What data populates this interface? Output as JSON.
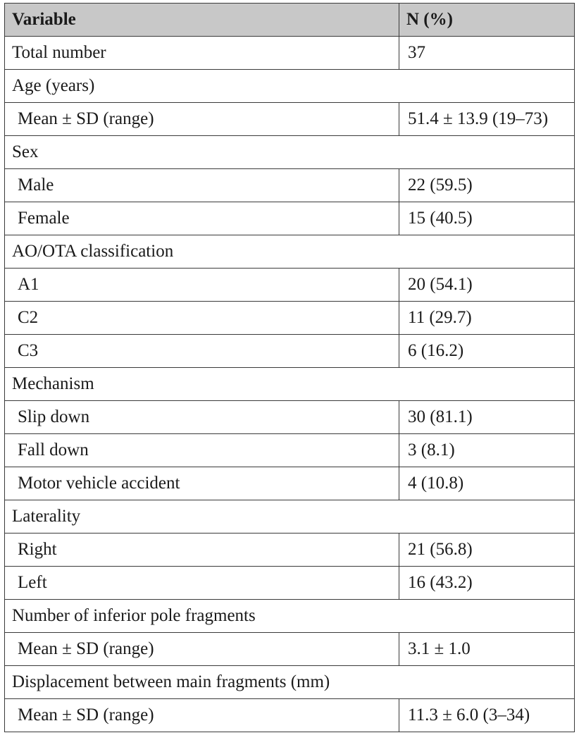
{
  "header": {
    "variable": "Variable",
    "n_percent": "N (%)"
  },
  "rows": [
    {
      "type": "row",
      "label": "Total number",
      "value": "37"
    },
    {
      "type": "section",
      "label": "Age (years)"
    },
    {
      "type": "subrow",
      "label": "Mean ± SD (range)",
      "value": "51.4 ± 13.9 (19–73)"
    },
    {
      "type": "section",
      "label": "Sex"
    },
    {
      "type": "subrow",
      "label": "Male",
      "value": "22 (59.5)"
    },
    {
      "type": "subrow",
      "label": "Female",
      "value": "15 (40.5)"
    },
    {
      "type": "section",
      "label": "AO/OTA classification"
    },
    {
      "type": "subrow",
      "label": "A1",
      "value": "20 (54.1)"
    },
    {
      "type": "subrow",
      "label": "C2",
      "value": "11 (29.7)"
    },
    {
      "type": "subrow",
      "label": "C3",
      "value": "6 (16.2)"
    },
    {
      "type": "section",
      "label": "Mechanism"
    },
    {
      "type": "subrow",
      "label": "Slip down",
      "value": "30 (81.1)"
    },
    {
      "type": "subrow",
      "label": "Fall down",
      "value": "3 (8.1)"
    },
    {
      "type": "subrow",
      "label": "Motor vehicle accident",
      "value": "4 (10.8)"
    },
    {
      "type": "section",
      "label": "Laterality"
    },
    {
      "type": "subrow",
      "label": "Right",
      "value": "21 (56.8)"
    },
    {
      "type": "subrow",
      "label": "Left",
      "value": "16 (43.2)"
    },
    {
      "type": "section",
      "label": "Number of inferior pole fragments"
    },
    {
      "type": "subrow",
      "label": "Mean ± SD (range)",
      "value": "3.1 ± 1.0"
    },
    {
      "type": "section",
      "label": "Displacement between main fragments (mm)"
    },
    {
      "type": "subrow",
      "label": "Mean ± SD (range)",
      "value": "11.3 ± 6.0 (3–34)"
    }
  ]
}
